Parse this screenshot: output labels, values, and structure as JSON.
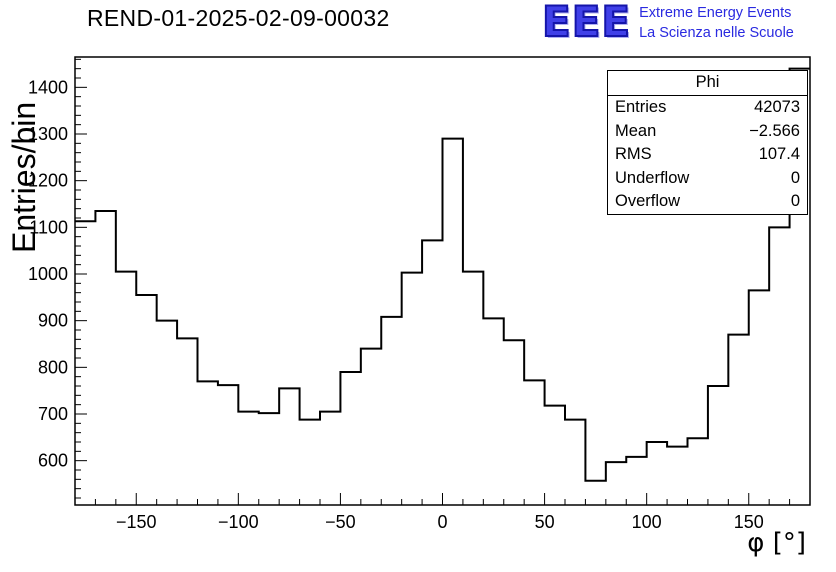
{
  "header": {
    "title": "REND-01-2025-02-09-00032"
  },
  "logo": {
    "text": "EEE",
    "line1": "Extreme Energy Events",
    "line2": "La Scienza nelle Scuole",
    "color": "#2a2ae0"
  },
  "stats": {
    "title": "Phi",
    "rows": [
      {
        "label": "Entries",
        "value": "42073"
      },
      {
        "label": "Mean",
        "value": "−2.566"
      },
      {
        "label": "RMS",
        "value": "107.4"
      },
      {
        "label": "Underflow",
        "value": "0"
      },
      {
        "label": "Overflow",
        "value": "0"
      }
    ]
  },
  "chart_data": {
    "type": "bar",
    "subtype": "step-histogram",
    "title": "REND-01-2025-02-09-00032",
    "xlabel": "φ [°]",
    "ylabel": "Entries/bin",
    "xlim": [
      -180,
      180
    ],
    "ylim": [
      505,
      1465
    ],
    "x_major_ticks": [
      -150,
      -100,
      -50,
      0,
      50,
      100,
      150
    ],
    "x_minor_step": 10,
    "y_major_ticks": [
      600,
      700,
      800,
      900,
      1000,
      1100,
      1200,
      1300,
      1400
    ],
    "y_minor_step": 20,
    "bin_start": -180,
    "bin_width": 10,
    "values": [
      1113,
      1135,
      1005,
      955,
      900,
      862,
      770,
      762,
      705,
      702,
      755,
      688,
      705,
      790,
      840,
      908,
      1003,
      1072,
      1290,
      1005,
      905,
      858,
      772,
      718,
      688,
      557,
      597,
      608,
      640,
      630,
      648,
      760,
      870,
      965,
      1100,
      1440
    ],
    "line_color": "#000000",
    "grid": false,
    "legend": "none"
  }
}
